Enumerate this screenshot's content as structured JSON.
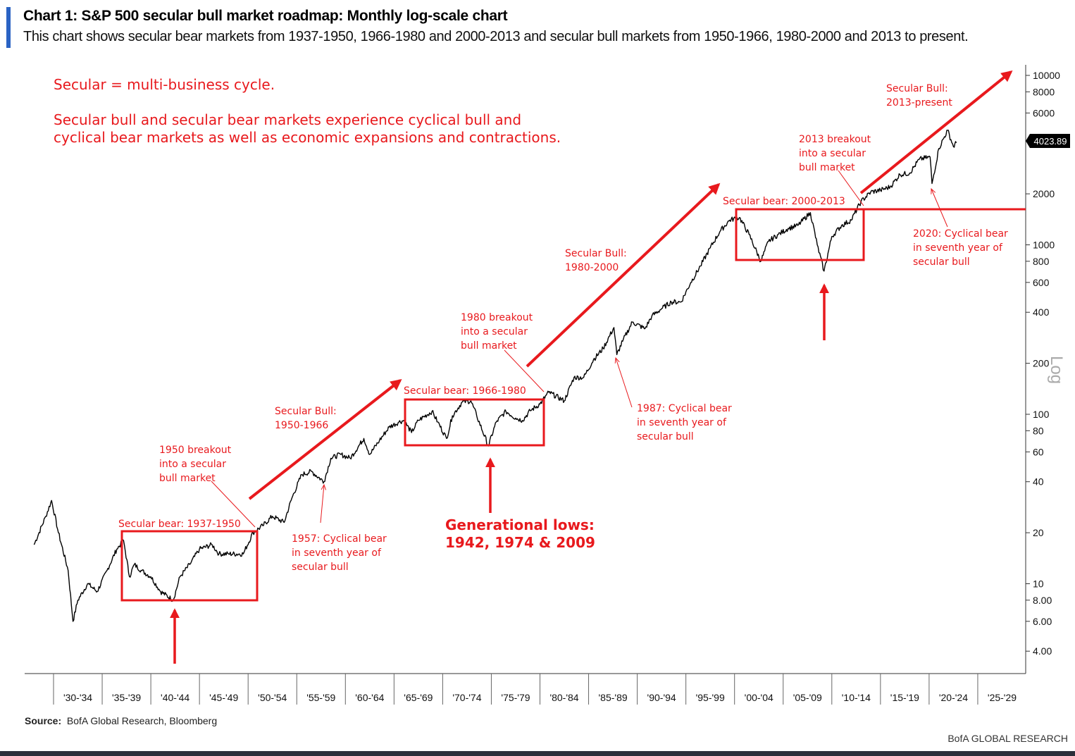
{
  "header": {
    "title": "Chart 1: S&P 500 secular bull market roadmap: Monthly log-scale chart",
    "subtitle": "This chart shows secular bear markets from 1937-1950, 1966-1980 and 2000-2013 and secular bull markets from 1950-1966, 1980-2000 and 2013 to present."
  },
  "footer": {
    "source_label": "Source:",
    "source_text": "BofA Global Research, Bloomberg",
    "brand": "BofA GLOBAL RESEARCH"
  },
  "colors": {
    "annotation": "#e8191d",
    "series": "#000000",
    "accent_bar": "#2a63c4",
    "last_value_bg": "#000000"
  },
  "chart_data": {
    "type": "line",
    "title": "Chart 1: S&P 500 secular bull market roadmap: Monthly log-scale chart",
    "yscale": "log",
    "ylabel": "Log",
    "ylim": [
      3,
      13000
    ],
    "xlim": [
      1927.5,
      2030
    ],
    "x_tick_labels": [
      "'30-'34",
      "'35-'39",
      "'40-'44",
      "'45-'49",
      "'50-'54",
      "'55-'59",
      "'60-'64",
      "'65-'69",
      "'70-'74",
      "'75-'79",
      "'80-'84",
      "'85-'89",
      "'90-'94",
      "'95-'99",
      "'00-'04",
      "'05-'09",
      "'10-'14",
      "'15-'19",
      "'20-'24",
      "'25-'29"
    ],
    "y_tick_labels": [
      "10000",
      "8000",
      "6000",
      "2000",
      "1000",
      "800",
      "600",
      "400",
      "200",
      "100",
      "80",
      "60",
      "40",
      "20",
      "10",
      "8.00",
      "6.00",
      "4.00"
    ],
    "y_tick_values": [
      10000,
      8000,
      6000,
      2000,
      1000,
      800,
      600,
      400,
      200,
      100,
      80,
      60,
      40,
      20,
      10,
      8,
      6,
      4
    ],
    "last_value_label": "4023.89",
    "series": [
      {
        "x": [
          1928,
          1929.2,
          1929.8,
          1930.5,
          1931.5,
          1932.0,
          1932.5,
          1933.5,
          1934.5,
          1935.5,
          1936.5,
          1937.2,
          1937.8,
          1938.3,
          1939.0,
          1940.0,
          1941.0,
          1942.3,
          1943.0,
          1944.0,
          1945.0,
          1946.3,
          1947.0,
          1948.0,
          1949.5,
          1950.5,
          1951.5,
          1952.5,
          1953.7,
          1954.5,
          1955.5,
          1956.5,
          1957.8,
          1958.5,
          1959.5,
          1960.5,
          1961.9,
          1962.5,
          1963.5,
          1964.5,
          1965.5,
          1966.0,
          1966.8,
          1967.5,
          1968.9,
          1969.5,
          1970.4,
          1971.0,
          1972.0,
          1972.9,
          1973.5,
          1974.7,
          1975.5,
          1976.5,
          1977.5,
          1978.2,
          1979.0,
          1980.0,
          1980.9,
          1982.5,
          1983.5,
          1984.5,
          1985.5,
          1986.5,
          1987.6,
          1987.9,
          1988.5,
          1989.5,
          1990.8,
          1991.5,
          1992.5,
          1993.5,
          1994.5,
          1995.5,
          1996.5,
          1997.5,
          1998.5,
          1999.5,
          2000.5,
          2001.5,
          2002.7,
          2003.5,
          2004.5,
          2005.5,
          2006.5,
          2007.8,
          2008.5,
          2009.2,
          2010.0,
          2011.0,
          2012.0,
          2013.0,
          2014.0,
          2015.0,
          2016.0,
          2017.0,
          2018.0,
          2019.0,
          2020.1,
          2020.3,
          2021.0,
          2021.9,
          2022.5,
          2022.8
        ],
        "y": [
          17,
          25,
          31,
          20,
          12,
          6,
          8,
          10,
          9,
          12,
          16,
          18,
          11,
          13,
          12,
          11,
          9,
          8,
          11,
          13,
          16,
          17,
          15,
          15,
          15,
          20,
          22,
          25,
          23,
          32,
          44,
          46,
          40,
          55,
          58,
          55,
          72,
          58,
          70,
          84,
          90,
          92,
          78,
          92,
          104,
          90,
          72,
          98,
          118,
          120,
          98,
          65,
          90,
          104,
          95,
          92,
          105,
          115,
          135,
          120,
          165,
          165,
          210,
          245,
          325,
          225,
          270,
          350,
          320,
          380,
          420,
          460,
          460,
          600,
          750,
          960,
          1200,
          1400,
          1450,
          1150,
          800,
          1050,
          1150,
          1250,
          1300,
          1550,
          1000,
          700,
          1120,
          1300,
          1400,
          1800,
          2050,
          2100,
          2200,
          2600,
          2650,
          3200,
          3300,
          2300,
          3700,
          4750,
          3800,
          4000
        ]
      }
    ],
    "annotations": {
      "intro_line1": "Secular = multi-business cycle.",
      "intro_line2a": "Secular bull and secular bear markets experience cyclical bull and",
      "intro_line2b": "cyclical bear markets as well as economic expansions and contractions.",
      "bear_1937": "Secular bear: 1937-1950",
      "bear_1966": "Secular bear: 1966-1980",
      "bear_2000": "Secular bear: 2000-2013",
      "bull_1950": [
        "Secular Bull:",
        "1950-1966"
      ],
      "bull_1980": [
        "Secular Bull:",
        "1980-2000"
      ],
      "bull_2013": [
        "Secular Bull:",
        "2013-present"
      ],
      "breakout_1950": [
        "1950 breakout",
        "into a secular",
        "bull market"
      ],
      "breakout_1980": [
        "1980 breakout",
        "into a secular",
        "bull market"
      ],
      "breakout_2013": [
        "2013 breakout",
        "into a secular",
        "bull market"
      ],
      "cyc_1957": [
        "1957: Cyclical bear",
        "in seventh year of",
        "secular bull"
      ],
      "cyc_1987": [
        "1987: Cyclical bear",
        "in seventh year of",
        "secular bull"
      ],
      "cyc_2020": [
        "2020: Cyclical bear",
        "in seventh year of",
        "secular bull"
      ],
      "gen_lows": [
        "Generational lows:",
        "1942, 1974 & 2009"
      ]
    }
  }
}
